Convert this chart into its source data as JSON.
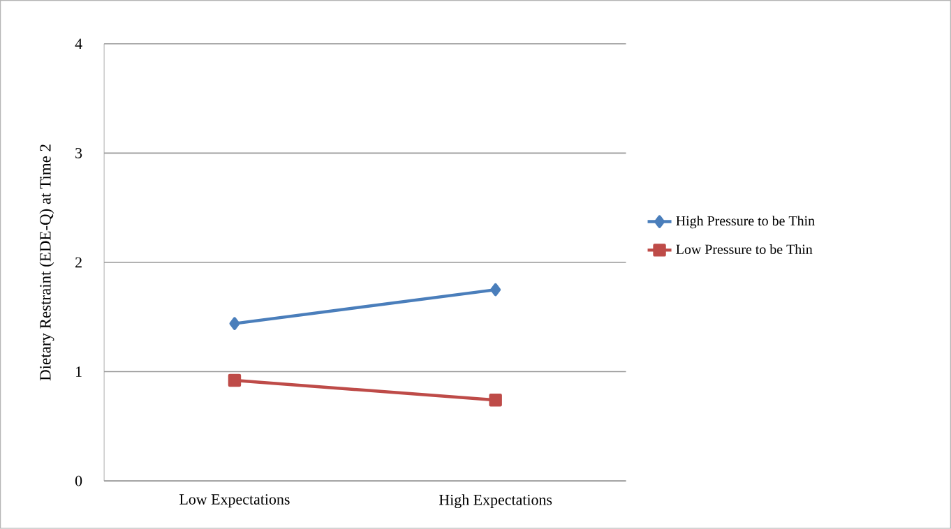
{
  "chart_data": {
    "type": "line",
    "ylabel": "Dietary Restraint (EDE-Q) at Time 2",
    "categories": [
      "Low Expectations",
      "High Expectations"
    ],
    "series": [
      {
        "name": "High Pressure to be Thin",
        "color": "#4a7ebb",
        "marker": "diamond",
        "values": [
          1.44,
          1.75
        ]
      },
      {
        "name": "Low Pressure to be Thin",
        "color": "#be4b48",
        "marker": "square",
        "values": [
          0.92,
          0.74
        ]
      }
    ],
    "ylim": [
      0,
      4
    ],
    "yticks": [
      0,
      1,
      2,
      3,
      4
    ],
    "grid": "y",
    "legend": "right",
    "line_style": "solid"
  }
}
